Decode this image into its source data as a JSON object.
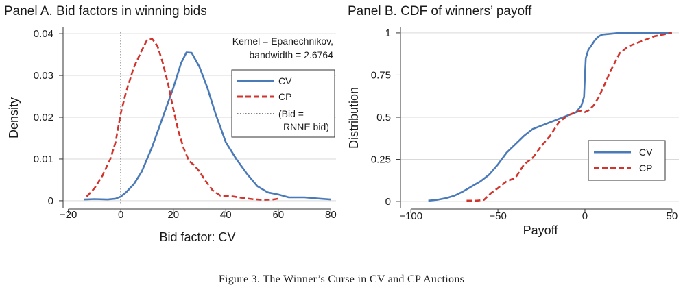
{
  "caption": "Figure 3. The Winner’s Curse in CV and CP Auctions",
  "colors": {
    "cv": "#4a7ab8",
    "cp": "#d0342c",
    "grid": "#d9d9d9",
    "axis": "#333333"
  },
  "chart_data": [
    {
      "type": "line",
      "title": "Panel A. Bid factors in winning bids",
      "xlabel": "Bid factor: CV",
      "ylabel": "Density",
      "xlim": [
        -22,
        82
      ],
      "ylim": [
        -0.001,
        0.041
      ],
      "xticks": [
        -20,
        0,
        20,
        40,
        60,
        80
      ],
      "xtick_labels": [
        "−20",
        "0",
        "20",
        "40",
        "60",
        "80"
      ],
      "yticks": [
        0,
        0.01,
        0.02,
        0.03,
        0.04
      ],
      "ytick_labels": [
        "0",
        "0.01",
        "0.02",
        "0.03",
        "0.04"
      ],
      "grid": true,
      "annotation": [
        "Kernel = Epanechnikov,",
        "bandwidth = 2.6764"
      ],
      "reference_line": {
        "x": 0,
        "style": "dotted"
      },
      "legend": {
        "position": "right",
        "entries": [
          {
            "label": "CV",
            "style": "solid",
            "color_key": "cv"
          },
          {
            "label": "CP",
            "style": "dashed",
            "color_key": "cp"
          },
          {
            "label": "(Bid =",
            "label2": "RNNE bid)",
            "style": "dotted",
            "color_key": "axis"
          }
        ]
      },
      "series": [
        {
          "name": "CV",
          "style": "solid",
          "x": [
            -14,
            -10,
            -5,
            -2,
            0,
            2,
            5,
            8,
            12,
            16,
            20,
            23,
            25,
            27,
            30,
            33,
            36,
            40,
            44,
            48,
            52,
            56,
            60,
            64,
            70,
            76,
            80
          ],
          "y": [
            0.0003,
            0.0004,
            0.0003,
            0.0005,
            0.001,
            0.002,
            0.004,
            0.007,
            0.013,
            0.02,
            0.027,
            0.033,
            0.0355,
            0.0354,
            0.032,
            0.027,
            0.021,
            0.014,
            0.01,
            0.0065,
            0.0035,
            0.002,
            0.0015,
            0.0008,
            0.0008,
            0.0005,
            0.0003
          ]
        },
        {
          "name": "CP",
          "style": "dashed",
          "x": [
            -13,
            -10,
            -7,
            -4,
            -2,
            0,
            2,
            5,
            8,
            10,
            12,
            14,
            16,
            18,
            20,
            22,
            24,
            26,
            28,
            30,
            32,
            35,
            38,
            42,
            46,
            50,
            54,
            58,
            60
          ],
          "y": [
            0.001,
            0.003,
            0.006,
            0.01,
            0.014,
            0.021,
            0.026,
            0.032,
            0.036,
            0.0385,
            0.0387,
            0.037,
            0.033,
            0.028,
            0.022,
            0.0165,
            0.0125,
            0.0095,
            0.0085,
            0.007,
            0.005,
            0.0025,
            0.0012,
            0.0011,
            0.0007,
            0.0004,
            0.0002,
            0.0003,
            0.0005
          ]
        }
      ]
    },
    {
      "type": "line",
      "title": "Panel B. CDF of winners’ payoff",
      "xlabel": "Payoff",
      "ylabel": "Distribution",
      "xlim": [
        -106,
        54
      ],
      "ylim": [
        -0.02,
        1.02
      ],
      "xticks": [
        -100,
        -50,
        0,
        50
      ],
      "xtick_labels": [
        "−100",
        "−50",
        "0",
        "50"
      ],
      "yticks": [
        0,
        0.25,
        0.5,
        0.75,
        1
      ],
      "ytick_labels": [
        "0",
        "0.25",
        "0.5",
        "0.75",
        "1"
      ],
      "grid": true,
      "legend": {
        "position": "lower-right",
        "entries": [
          {
            "label": "CV",
            "style": "solid",
            "color_key": "cv"
          },
          {
            "label": "CP",
            "style": "dashed",
            "color_key": "cp"
          }
        ]
      },
      "series": [
        {
          "name": "CV",
          "style": "solid",
          "x": [
            -90,
            -85,
            -80,
            -75,
            -70,
            -65,
            -60,
            -55,
            -50,
            -45,
            -40,
            -35,
            -30,
            -25,
            -20,
            -15,
            -10,
            -5,
            -2,
            -0.5,
            0,
            0.5,
            2,
            4,
            6,
            8,
            10,
            15,
            20,
            30,
            40,
            50
          ],
          "y": [
            0.005,
            0.01,
            0.02,
            0.035,
            0.06,
            0.09,
            0.12,
            0.16,
            0.22,
            0.29,
            0.34,
            0.39,
            0.43,
            0.45,
            0.47,
            0.49,
            0.51,
            0.53,
            0.57,
            0.62,
            0.75,
            0.85,
            0.9,
            0.93,
            0.96,
            0.98,
            0.99,
            0.995,
            1.0,
            1.0,
            1.0,
            1.0
          ]
        },
        {
          "name": "CP",
          "style": "dashed",
          "x": [
            -68,
            -62,
            -58,
            -54,
            -50,
            -45,
            -40,
            -35,
            -30,
            -25,
            -20,
            -15,
            -10,
            -5,
            -2,
            0,
            2,
            5,
            8,
            12,
            15,
            18,
            20,
            25,
            30,
            35,
            40,
            45,
            50
          ],
          "y": [
            0.005,
            0.005,
            0.01,
            0.05,
            0.08,
            0.12,
            0.14,
            0.22,
            0.26,
            0.33,
            0.39,
            0.47,
            0.51,
            0.53,
            0.54,
            0.53,
            0.54,
            0.57,
            0.62,
            0.71,
            0.78,
            0.84,
            0.88,
            0.92,
            0.94,
            0.96,
            0.98,
            0.99,
            1.0
          ]
        }
      ]
    }
  ]
}
